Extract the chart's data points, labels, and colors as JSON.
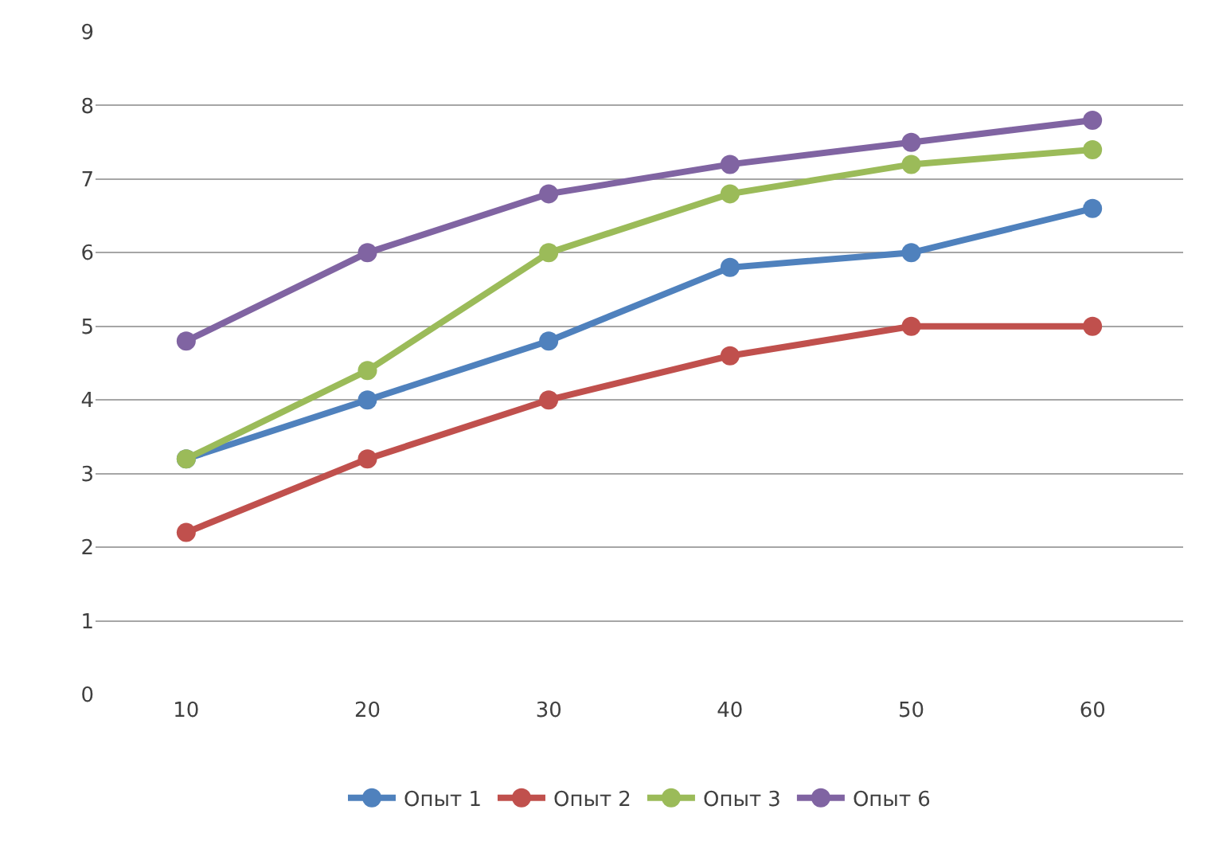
{
  "chart_data": {
    "type": "line",
    "categories": [
      "10",
      "20",
      "30",
      "40",
      "50",
      "60"
    ],
    "series": [
      {
        "name": "Опыт 1",
        "color": "#4f81bd",
        "values": [
          3.2,
          4.0,
          4.8,
          5.8,
          6.0,
          6.6
        ]
      },
      {
        "name": "Опыт 2",
        "color": "#c0504d",
        "values": [
          2.2,
          3.2,
          4.0,
          4.6,
          5.0,
          5.0
        ]
      },
      {
        "name": "Опыт 3",
        "color": "#9bbb59",
        "values": [
          3.2,
          4.4,
          6.0,
          6.8,
          7.2,
          7.4
        ]
      },
      {
        "name": "Опыт 6",
        "color": "#8064a2",
        "values": [
          4.8,
          6.0,
          6.8,
          7.2,
          7.5,
          7.8
        ]
      }
    ],
    "ylim": [
      0,
      9
    ],
    "yticks": [
      0,
      1,
      2,
      3,
      4,
      5,
      6,
      7,
      8,
      9
    ],
    "grid": "y",
    "legend": "bottom",
    "marker": "circle",
    "line_style": "solid"
  }
}
